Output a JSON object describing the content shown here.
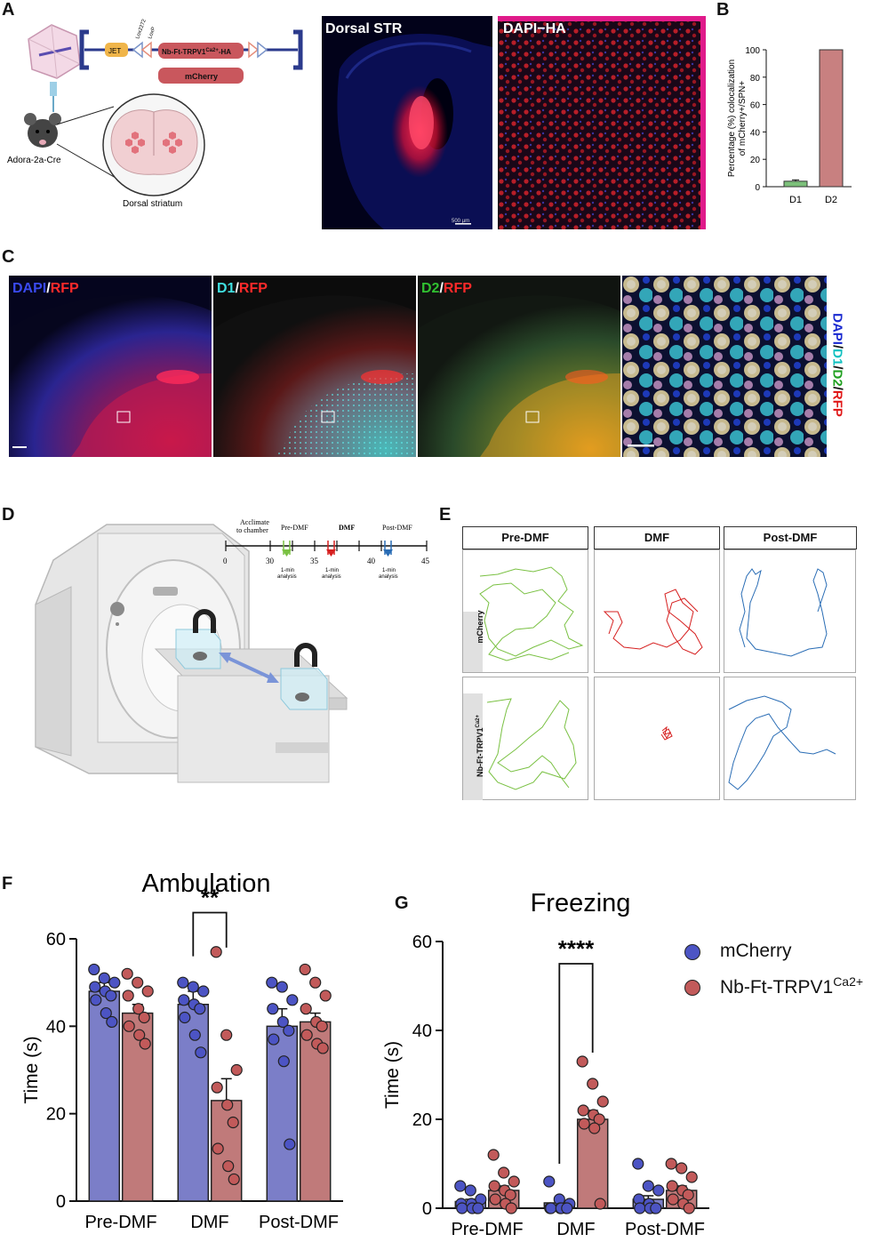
{
  "panels": {
    "A": "A",
    "B": "B",
    "C": "C",
    "D": "D",
    "E": "E",
    "F": "F",
    "G": "G"
  },
  "panel_a": {
    "construct": {
      "jet": "JET",
      "lox2272": "Lox2272",
      "loxp": "LoxP",
      "gene_main": "Nb-Ft-TRPV1",
      "gene_sup": "Ca2+",
      "gene_suffix": "-HA",
      "mcherry": "mCherry"
    },
    "mouse_label": "Adora-2a-Cre",
    "region_label": "Dorsal striatum",
    "image1_title": "Dorsal STR",
    "scale_bar": "500 µm",
    "image2_title": "DAPI−HA"
  },
  "panel_c": {
    "img1": {
      "a": "DAPI",
      "sep": "/",
      "b": "RFP"
    },
    "img2": {
      "a": "D1",
      "sep": "/",
      "b": "RFP"
    },
    "img3": {
      "a": "D2",
      "sep": "/",
      "b": "RFP"
    },
    "side": {
      "a": "DAPI",
      "s1": "/",
      "b": "D1",
      "s2": "/",
      "c": "D2",
      "s3": "/",
      "d": "RFP"
    }
  },
  "panel_d": {
    "timeline": {
      "acclimate": "Acclimate\nto chamber",
      "pre": "Pre-DMF",
      "dmf": "DMF",
      "post": "Post-DMF",
      "ticks": [
        "0",
        "30",
        "35",
        "40",
        "45"
      ],
      "analysis": "1-min\nanalysis"
    }
  },
  "panel_e": {
    "columns": [
      "Pre-DMF",
      "DMF",
      "Post-DMF"
    ],
    "rows": [
      {
        "main": "mCherry",
        "sup": ""
      },
      {
        "main": "Nb-Ft-TRPV1",
        "sup": "Ca2+"
      }
    ]
  },
  "legend": {
    "mcherry": "mCherry",
    "trpv_main": "Nb-Ft-TRPV1",
    "trpv_sup": "Ca2+"
  },
  "colors": {
    "mcherry": "#7b7ec8",
    "trpv": "#c07a7a",
    "mcherry_dot": "#4c54c4",
    "trpv_dot": "#c25a5a",
    "pre_arrow": "#7ac143",
    "dmf_arrow": "#d62020",
    "post_arrow": "#2a6db5"
  },
  "chart_data": [
    {
      "type": "bar",
      "title": "",
      "xlabel": "",
      "ylabel": "Percentage (%) colocalization of mCherry+/SPN+",
      "categories": [
        "D1",
        "D2"
      ],
      "values": [
        4,
        100
      ],
      "errors": [
        1,
        0
      ],
      "ylim": [
        0,
        100
      ],
      "yticks": [
        "0",
        "20",
        "40",
        "60",
        "80",
        "100"
      ],
      "colors": [
        "#7cc07a",
        "#c88080"
      ]
    },
    {
      "type": "bar",
      "title": "Ambulation",
      "ylabel": "Time (s)",
      "categories": [
        "Pre-DMF",
        "DMF",
        "Post-DMF"
      ],
      "ylim": [
        0,
        60
      ],
      "yticks": [
        "0",
        "20",
        "40",
        "60"
      ],
      "significance": "**",
      "series": [
        {
          "name": "mCherry",
          "values": [
            48,
            45,
            40
          ],
          "errors": [
            2,
            3,
            4
          ],
          "points": [
            [
              53,
              51,
              50,
              49,
              48,
              47,
              46,
              43,
              41
            ],
            [
              50,
              49,
              48,
              46,
              45,
              44,
              42,
              38,
              34
            ],
            [
              50,
              49,
              46,
              44,
              41,
              39,
              37,
              32,
              13
            ]
          ]
        },
        {
          "name": "Nb-Ft-TRPV1Ca2+",
          "values": [
            43,
            23,
            41
          ],
          "errors": [
            2,
            5,
            2
          ],
          "points": [
            [
              52,
              50,
              48,
              47,
              44,
              42,
              40,
              38,
              36
            ],
            [
              57,
              38,
              30,
              26,
              22,
              18,
              12,
              8,
              5
            ],
            [
              53,
              50,
              47,
              44,
              41,
              40,
              38,
              36,
              35
            ]
          ]
        }
      ]
    },
    {
      "type": "bar",
      "title": "Freezing",
      "ylabel": "Time (s)",
      "categories": [
        "Pre-DMF",
        "DMF",
        "Post-DMF"
      ],
      "ylim": [
        0,
        60
      ],
      "yticks": [
        "0",
        "20",
        "40",
        "60"
      ],
      "significance": "****",
      "series": [
        {
          "name": "mCherry",
          "values": [
            1.5,
            1.2,
            2
          ],
          "errors": [
            0.5,
            0.5,
            0.8
          ],
          "points": [
            [
              5,
              4,
              2,
              1,
              1,
              0,
              0,
              0,
              0
            ],
            [
              6,
              2,
              1,
              0,
              0,
              0,
              0,
              0,
              0
            ],
            [
              10,
              5,
              4,
              2,
              1,
              0,
              0,
              0,
              0
            ]
          ]
        },
        {
          "name": "Nb-Ft-TRPV1Ca2+",
          "values": [
            4,
            20,
            4
          ],
          "errors": [
            1,
            2,
            1
          ],
          "points": [
            [
              12,
              8,
              6,
              5,
              4,
              3,
              2,
              1,
              0
            ],
            [
              33,
              28,
              24,
              22,
              21,
              20,
              19,
              18,
              1
            ],
            [
              10,
              9,
              7,
              5,
              4,
              3,
              2,
              1,
              0
            ]
          ]
        }
      ]
    }
  ]
}
